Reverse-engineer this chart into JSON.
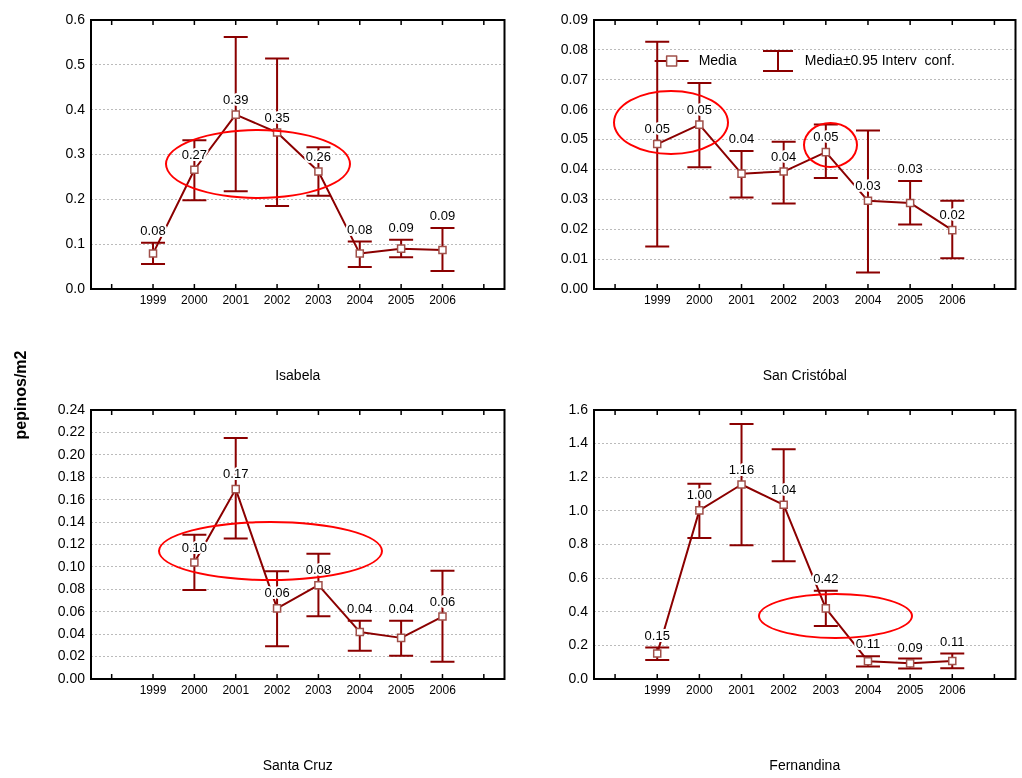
{
  "chart_data": [
    {
      "type": "line",
      "xlabel": "Isabela",
      "ylabel": "pepinos/m2",
      "categories": [
        null,
        "1999",
        "2000",
        "2001",
        "2002",
        "2003",
        "2004",
        "2005",
        "2006",
        null
      ],
      "ylim": [
        0,
        0.6
      ],
      "yticks": [
        {
          "value": 0,
          "label": "0.0"
        },
        0.1,
        0.2,
        0.3,
        0.4,
        0.5,
        0.6
      ],
      "grid": "y",
      "marker": "square",
      "line_style": "solid",
      "series": [
        {
          "color": "#8b0000",
          "values": [
            null,
            0.079,
            0.266,
            0.389,
            0.349,
            0.262,
            0.079,
            0.09,
            0.087,
            null
          ],
          "errors": [
            null,
            [
              0.056,
              0.103
            ],
            [
              0.198,
              0.332
            ],
            [
              0.218,
              0.562
            ],
            [
              0.185,
              0.514
            ],
            [
              0.208,
              0.316
            ],
            [
              0.049,
              0.106
            ],
            [
              0.071,
              0.11
            ],
            [
              0.04,
              0.136
            ],
            null
          ],
          "value_labels": [
            null,
            "0.08",
            "0.27",
            "0.39",
            "0.35",
            "0.26",
            "0.08",
            "0.09",
            "0.09",
            null
          ]
        }
      ]
    },
    {
      "type": "line",
      "xlabel": "San Cristóbal",
      "categories": [
        null,
        "1999",
        "2000",
        "2001",
        "2002",
        "2003",
        "2004",
        "2005",
        "2006",
        null
      ],
      "ylim": [
        0,
        0.09
      ],
      "yticks": [
        {
          "value": 0,
          "label": "0.00"
        },
        0.01,
        0.02,
        0.03,
        0.04,
        0.05,
        0.06,
        0.07,
        0.08,
        0.09
      ],
      "grid": "y",
      "marker": "square",
      "line_style": "solid",
      "legend": "top",
      "annotations": [
        "Media±0.95 Interv  conf."
      ],
      "series": [
        {
          "name": "Media",
          "color": "#8b0000",
          "values": [
            null,
            0.0485,
            0.055,
            0.0386,
            0.0393,
            0.0458,
            0.0295,
            0.0288,
            0.0197,
            null
          ],
          "errors": [
            null,
            [
              0.0142,
              0.0827
            ],
            [
              0.0407,
              0.0689
            ],
            [
              0.0306,
              0.0462
            ],
            [
              0.0286,
              0.0493
            ],
            [
              0.0371,
              0.055
            ],
            [
              0.0055,
              0.053
            ],
            [
              0.0216,
              0.0361
            ],
            [
              0.0103,
              0.0295
            ],
            null
          ],
          "value_labels": [
            null,
            "0.05",
            "0.05",
            "0.04",
            "0.04",
            "0.05",
            "0.03",
            "0.03",
            "0.02",
            null
          ]
        }
      ]
    },
    {
      "type": "line",
      "xlabel": "Santa Cruz",
      "categories": [
        null,
        "1999",
        "2000",
        "2001",
        "2002",
        "2003",
        "2004",
        "2005",
        "2006",
        null
      ],
      "ylim": [
        0,
        0.24
      ],
      "yticks": [
        {
          "value": 0,
          "label": "0.00"
        },
        0.02,
        0.04,
        0.06,
        0.08,
        {
          "value": 0.1,
          "label": "0.10"
        },
        0.12,
        0.14,
        0.16,
        0.18,
        {
          "value": 0.2,
          "label": "0.20"
        },
        0.22,
        0.24
      ],
      "grid": "y",
      "marker": "square",
      "line_style": "solid",
      "series": [
        {
          "color": "#8b0000",
          "values": [
            null,
            null,
            0.104,
            0.1694,
            0.063,
            0.0837,
            0.042,
            0.0367,
            0.0557,
            null
          ],
          "errors": [
            null,
            null,
            [
              0.0793,
              0.1286
            ],
            [
              0.1254,
              0.215
            ],
            [
              0.0292,
              0.0962
            ],
            [
              0.056,
              0.1117
            ],
            [
              0.0251,
              0.052
            ],
            [
              0.0207,
              0.052
            ],
            [
              0.0155,
              0.0965
            ],
            null
          ],
          "value_labels": [
            null,
            null,
            "0.10",
            "0.17",
            "0.06",
            "0.08",
            "0.04",
            "0.04",
            "0.06",
            null
          ]
        }
      ]
    },
    {
      "type": "line",
      "xlabel": "Fernandina",
      "categories": [
        null,
        "1999",
        "2000",
        "2001",
        "2002",
        "2003",
        "2004",
        "2005",
        "2006",
        null
      ],
      "ylim": [
        0,
        1.6
      ],
      "yticks": [
        {
          "value": 0,
          "label": "0.0"
        },
        0.2,
        0.4,
        0.6,
        0.8,
        {
          "value": 1,
          "label": "1.0"
        },
        1.2,
        1.4,
        1.6
      ],
      "grid": "y",
      "marker": "square",
      "line_style": "solid",
      "series": [
        {
          "color": "#8b0000",
          "values": [
            null,
            0.152,
            1.003,
            1.157,
            1.036,
            0.42,
            0.106,
            0.093,
            0.107,
            null
          ],
          "errors": [
            null,
            [
              0.113,
              0.187
            ],
            [
              0.838,
              1.162
            ],
            [
              0.795,
              1.516
            ],
            [
              0.7,
              1.366
            ],
            [
              0.315,
              0.525
            ],
            [
              0.074,
              0.136
            ],
            [
              0.062,
              0.122
            ],
            [
              0.064,
              0.152
            ],
            null
          ],
          "value_labels": [
            null,
            "0.15",
            "1.00",
            "1.16",
            "1.04",
            "0.42",
            "0.11",
            "0.09",
            "0.11",
            null
          ]
        }
      ]
    }
  ]
}
